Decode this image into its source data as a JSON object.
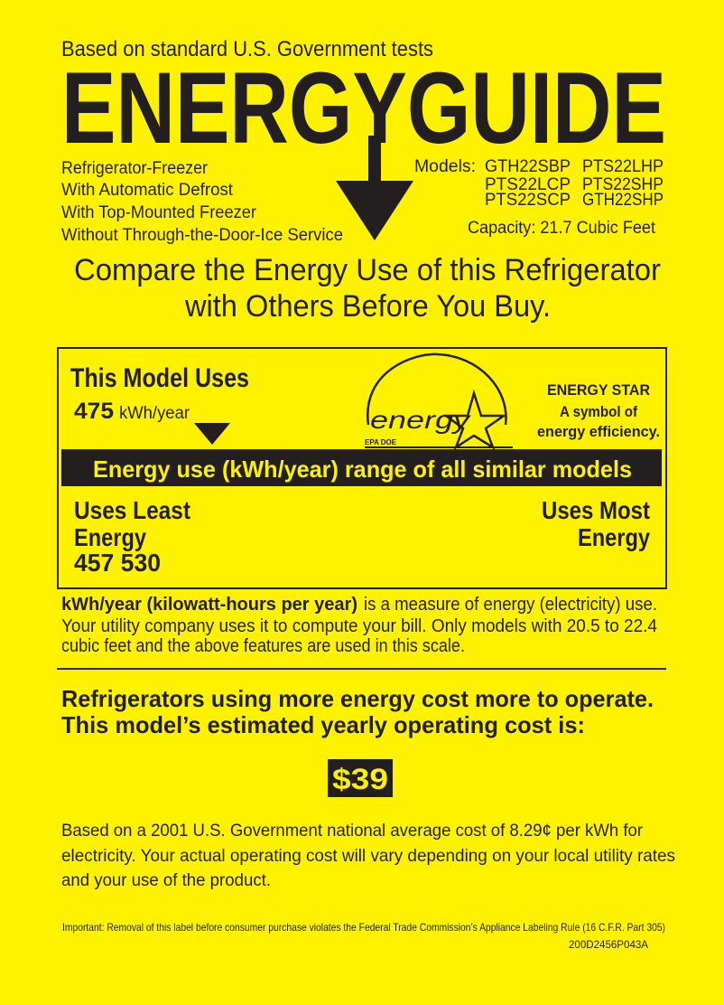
{
  "colors": {
    "background": "#FFF200",
    "ink": "#231F20"
  },
  "header": {
    "tests_note": "Based on standard U.S. Government tests",
    "title": "ENERGYGUIDE"
  },
  "product": {
    "features": [
      "Refrigerator-Freezer",
      "With Automatic Defrost",
      "With Top-Mounted Freezer",
      "Without Through-the-Door-Ice Service"
    ],
    "models_label": "Models:",
    "models": [
      "GTH22SBP",
      "PTS22LHP",
      "PTS22LCP",
      "PTS22SHP",
      "PTS22SCP",
      "GTH22SHP"
    ],
    "capacity": "Capacity: 21.7 Cubic Feet"
  },
  "compare": {
    "line1": "Compare the Energy Use of this Refrigerator",
    "line2": "with Others Before You Buy."
  },
  "usage_box": {
    "heading": "This Model Uses",
    "value": "475",
    "unit": "kWh/year",
    "logo_text": "energy",
    "logo_small": "EPA DOE",
    "energy_star_lines": [
      "ENERGY STAR",
      "A symbol of",
      "energy efficiency."
    ],
    "range_bar": "Energy use (kWh/year) range of all similar models",
    "least_label_1": "Uses Least",
    "least_label_2": "Energy",
    "range_values": "457 530",
    "most_label_1": "Uses Most",
    "most_label_2": "Energy",
    "range_min": 457,
    "range_max": 530
  },
  "explanation": {
    "bold": "kWh/year (kilowatt-hours per year)",
    "line1_rest": "is a measure of energy (electricity) use.",
    "line2": "Your utility company uses it to compute your bill. Only models with 20.5 to 22.4",
    "line3": "cubic feet and the above features are used in this scale."
  },
  "cost": {
    "heading1": "Refrigerators using more energy cost more to operate.",
    "heading2": "This model’s estimated yearly operating cost is:",
    "amount": "$39",
    "note1": "Based on a 2001 U.S. Government national average cost of 8.29¢ per kWh for",
    "note2": "electricity. Your actual operating cost will vary depending on your local utility rates",
    "note3": "and your use of the product."
  },
  "footer": {
    "legal": "Important: Removal of this label before consumer purchase violates the Federal Trade Commission’s Appliance Labeling Rule (16 C.F.R. Part 305)",
    "code": "200D2456P043A"
  }
}
